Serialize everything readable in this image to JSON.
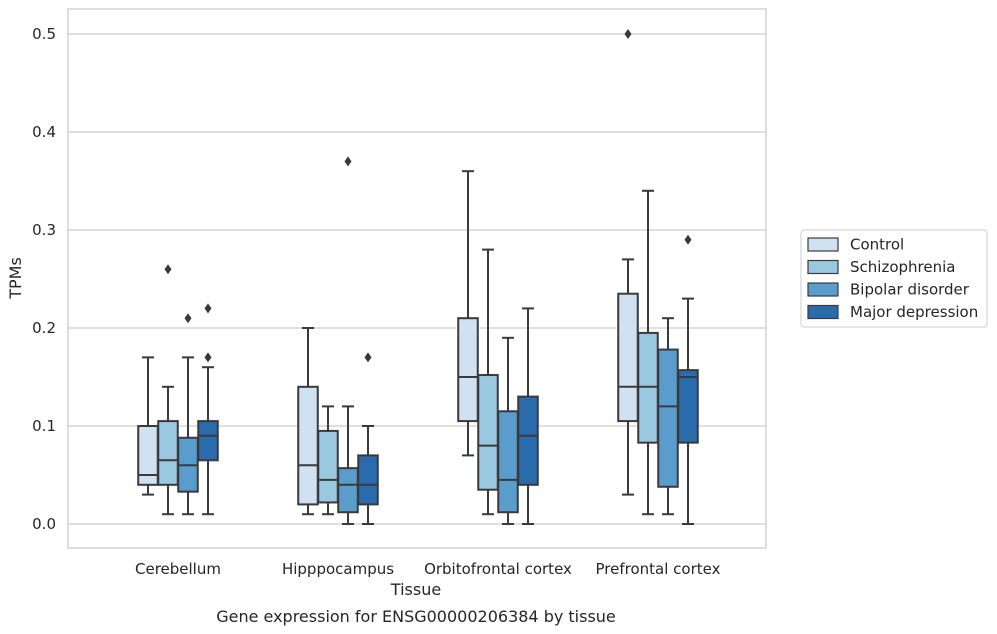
{
  "chart_data": {
    "type": "box",
    "title": "",
    "caption": "Gene expression for ENSG00000206384 by tissue",
    "xlabel": "Tissue",
    "ylabel": "TPMs",
    "ylim": [
      -0.025,
      0.525
    ],
    "yticks": [
      0.0,
      0.1,
      0.2,
      0.3,
      0.4,
      0.5
    ],
    "ytick_labels": [
      "0.0",
      "0.1",
      "0.2",
      "0.3",
      "0.4",
      "0.5"
    ],
    "grid": "horizontal",
    "legend_position": "right",
    "categories": [
      "Cerebellum",
      "Hipppocampus",
      "Orbitofrontal cortex",
      "Prefrontal cortex"
    ],
    "series": [
      {
        "name": "Control",
        "color": "#d0e2f2",
        "boxes": [
          {
            "whisker_low": 0.03,
            "q1": 0.04,
            "median": 0.05,
            "q3": 0.1,
            "whisker_high": 0.17,
            "outliers": []
          },
          {
            "whisker_low": 0.01,
            "q1": 0.02,
            "median": 0.06,
            "q3": 0.14,
            "whisker_high": 0.2,
            "outliers": []
          },
          {
            "whisker_low": 0.07,
            "q1": 0.105,
            "median": 0.15,
            "q3": 0.21,
            "whisker_high": 0.36,
            "outliers": []
          },
          {
            "whisker_low": 0.03,
            "q1": 0.105,
            "median": 0.14,
            "q3": 0.235,
            "whisker_high": 0.27,
            "outliers": [
              0.5
            ]
          }
        ]
      },
      {
        "name": "Schizophrenia",
        "color": "#9ac8e0",
        "boxes": [
          {
            "whisker_low": 0.01,
            "q1": 0.04,
            "median": 0.065,
            "q3": 0.105,
            "whisker_high": 0.14,
            "outliers": [
              0.26
            ]
          },
          {
            "whisker_low": 0.01,
            "q1": 0.022,
            "median": 0.045,
            "q3": 0.095,
            "whisker_high": 0.12,
            "outliers": []
          },
          {
            "whisker_low": 0.01,
            "q1": 0.035,
            "median": 0.08,
            "q3": 0.152,
            "whisker_high": 0.28,
            "outliers": []
          },
          {
            "whisker_low": 0.01,
            "q1": 0.083,
            "median": 0.14,
            "q3": 0.195,
            "whisker_high": 0.34,
            "outliers": []
          }
        ]
      },
      {
        "name": "Bipolar disorder",
        "color": "#5a9ccc",
        "boxes": [
          {
            "whisker_low": 0.01,
            "q1": 0.033,
            "median": 0.06,
            "q3": 0.088,
            "whisker_high": 0.17,
            "outliers": [
              0.21
            ]
          },
          {
            "whisker_low": 0.0,
            "q1": 0.012,
            "median": 0.04,
            "q3": 0.057,
            "whisker_high": 0.12,
            "outliers": [
              0.37
            ]
          },
          {
            "whisker_low": 0.0,
            "q1": 0.012,
            "median": 0.045,
            "q3": 0.115,
            "whisker_high": 0.19,
            "outliers": []
          },
          {
            "whisker_low": 0.01,
            "q1": 0.038,
            "median": 0.12,
            "q3": 0.178,
            "whisker_high": 0.21,
            "outliers": []
          }
        ]
      },
      {
        "name": "Major depression",
        "color": "#2a6bac",
        "boxes": [
          {
            "whisker_low": 0.01,
            "q1": 0.065,
            "median": 0.09,
            "q3": 0.105,
            "whisker_high": 0.16,
            "outliers": [
              0.17,
              0.22
            ]
          },
          {
            "whisker_low": 0.0,
            "q1": 0.02,
            "median": 0.04,
            "q3": 0.07,
            "whisker_high": 0.1,
            "outliers": [
              0.17
            ]
          },
          {
            "whisker_low": 0.0,
            "q1": 0.04,
            "median": 0.09,
            "q3": 0.13,
            "whisker_high": 0.22,
            "outliers": []
          },
          {
            "whisker_low": 0.0,
            "q1": 0.083,
            "median": 0.15,
            "q3": 0.157,
            "whisker_high": 0.23,
            "outliers": [
              0.29
            ]
          }
        ]
      }
    ]
  }
}
